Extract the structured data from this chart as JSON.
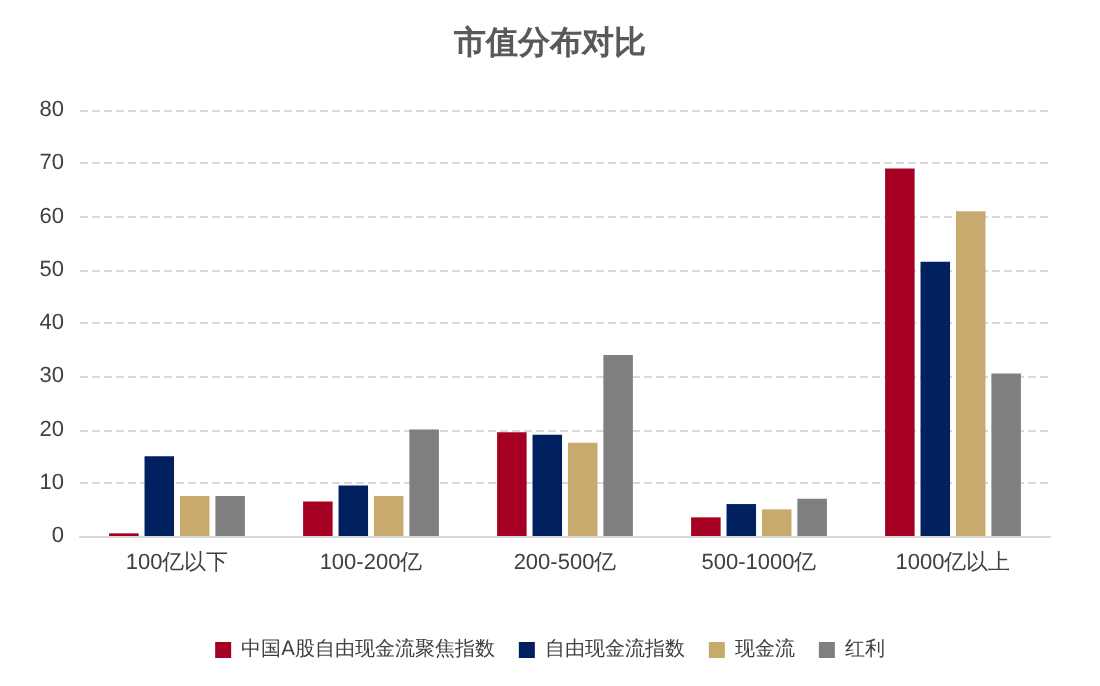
{
  "chart_data": {
    "type": "bar",
    "title": "市值分布对比",
    "categories": [
      "100亿以下",
      "100-200亿",
      "200-500亿",
      "500-1000亿",
      "1000亿以上"
    ],
    "series": [
      {
        "name": "中国A股自由现金流聚焦指数",
        "color": "#a50021",
        "values": [
          0.5,
          6.5,
          19.5,
          3.5,
          69
        ]
      },
      {
        "name": "自由现金流指数",
        "color": "#002060",
        "values": [
          15,
          9.5,
          19,
          6,
          51.5
        ]
      },
      {
        "name": "现金流",
        "color": "#c8a96e",
        "values": [
          7.5,
          7.5,
          17.5,
          5,
          61
        ]
      },
      {
        "name": "红利",
        "color": "#7f7f7f",
        "values": [
          7.5,
          20,
          34,
          7,
          30.5
        ]
      }
    ],
    "ylim": [
      0,
      80
    ],
    "yticks": [
      0,
      10,
      20,
      30,
      40,
      50,
      60,
      70,
      80
    ],
    "grid": "y",
    "legend": "bottom"
  }
}
